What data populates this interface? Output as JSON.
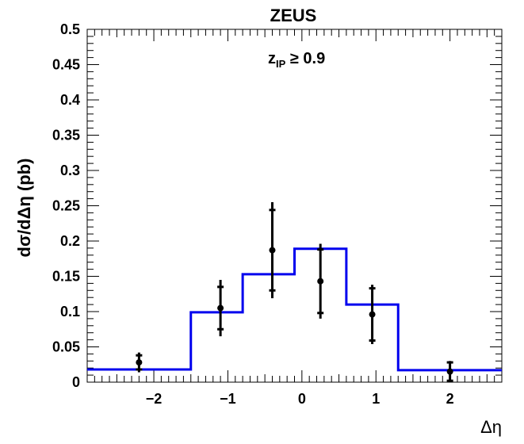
{
  "chart_data": {
    "type": "scatter",
    "title": "ZEUS",
    "xlabel": "Δη",
    "ylabel": "dσ/dΔη (pb)",
    "annotation": {
      "main": "z",
      "sub": "IP",
      "rest": " ≥ 0.9"
    },
    "xlim": [
      -2.9,
      2.7
    ],
    "ylim": [
      0,
      0.5
    ],
    "x_ticks": [
      -2,
      -1,
      0,
      1,
      2
    ],
    "x_tick_labels": [
      "−2",
      "−1",
      "0",
      "1",
      "2"
    ],
    "y_ticks": [
      0,
      0.05,
      0.1,
      0.15,
      0.2,
      0.25,
      0.3,
      0.35,
      0.4,
      0.45,
      0.5
    ],
    "y_tick_labels": [
      "0",
      "0.05",
      "0.1",
      "0.15",
      "0.2",
      "0.25",
      "0.3",
      "0.35",
      "0.4",
      "0.45",
      "0.5"
    ],
    "data_points": {
      "x": [
        -2.2,
        -1.1,
        -0.4,
        0.25,
        0.95,
        2.0
      ],
      "y": [
        0.028,
        0.105,
        0.187,
        0.143,
        0.096,
        0.015
      ],
      "err_stat": [
        0.01,
        0.03,
        0.057,
        0.045,
        0.037,
        0.013
      ],
      "err_tot": [
        0.014,
        0.04,
        0.068,
        0.053,
        0.042,
        0.015
      ],
      "color": "#000000"
    },
    "model": {
      "type": "step",
      "color": "#0000ee",
      "edges": [
        -2.9,
        -1.5,
        -0.8,
        -0.1,
        0.6,
        1.3,
        2.7
      ],
      "values": [
        0.018,
        0.099,
        0.153,
        0.189,
        0.11,
        0.017
      ]
    },
    "grid": false
  }
}
